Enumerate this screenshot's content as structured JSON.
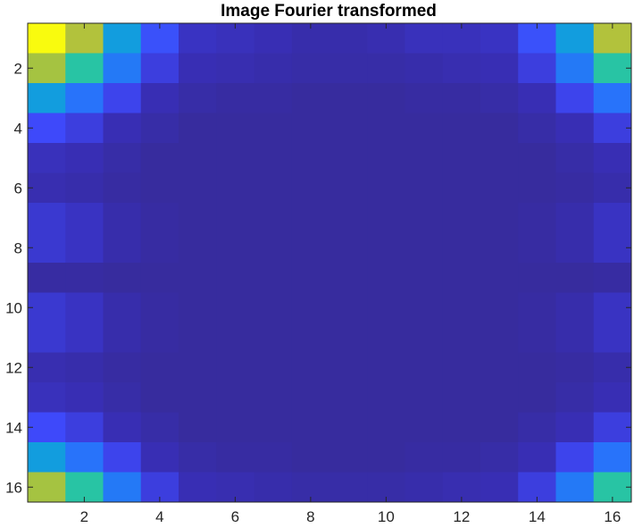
{
  "chart_data": {
    "type": "heatmap",
    "title": "Image Fourier transformed",
    "xlabel": "",
    "ylabel": "",
    "xlim": [
      0.5,
      16.5
    ],
    "ylim": [
      0.5,
      16.5
    ],
    "y_reversed": true,
    "x_ticks": [
      2,
      4,
      6,
      8,
      10,
      12,
      14,
      16
    ],
    "y_ticks": [
      2,
      4,
      6,
      8,
      10,
      12,
      14,
      16
    ],
    "x_tick_labels": [
      "2",
      "4",
      "6",
      "8",
      "10",
      "12",
      "14",
      "16"
    ],
    "y_tick_labels": [
      "2",
      "4",
      "6",
      "8",
      "10",
      "12",
      "14",
      "16"
    ],
    "grid": false,
    "colorbar": false,
    "colormap": "parula",
    "clim": [
      0,
      1
    ],
    "values": [
      [
        1.0,
        0.82,
        0.44,
        0.22,
        0.12,
        0.11,
        0.1,
        0.08,
        0.08,
        0.09,
        0.11,
        0.11,
        0.12,
        0.22,
        0.44,
        0.82
      ],
      [
        0.8,
        0.62,
        0.32,
        0.16,
        0.1,
        0.09,
        0.08,
        0.07,
        0.07,
        0.07,
        0.08,
        0.09,
        0.1,
        0.16,
        0.32,
        0.62
      ],
      [
        0.44,
        0.3,
        0.18,
        0.1,
        0.07,
        0.06,
        0.06,
        0.05,
        0.05,
        0.05,
        0.06,
        0.06,
        0.07,
        0.1,
        0.18,
        0.3
      ],
      [
        0.2,
        0.16,
        0.1,
        0.07,
        0.05,
        0.05,
        0.05,
        0.05,
        0.05,
        0.05,
        0.05,
        0.05,
        0.05,
        0.07,
        0.1,
        0.16
      ],
      [
        0.11,
        0.1,
        0.07,
        0.05,
        0.05,
        0.05,
        0.05,
        0.05,
        0.05,
        0.05,
        0.05,
        0.05,
        0.05,
        0.05,
        0.07,
        0.1
      ],
      [
        0.09,
        0.08,
        0.06,
        0.05,
        0.05,
        0.05,
        0.05,
        0.05,
        0.05,
        0.05,
        0.05,
        0.05,
        0.05,
        0.05,
        0.06,
        0.08
      ],
      [
        0.14,
        0.12,
        0.08,
        0.06,
        0.05,
        0.05,
        0.05,
        0.05,
        0.05,
        0.05,
        0.05,
        0.05,
        0.05,
        0.06,
        0.08,
        0.12
      ],
      [
        0.14,
        0.12,
        0.08,
        0.06,
        0.05,
        0.05,
        0.05,
        0.05,
        0.05,
        0.05,
        0.05,
        0.05,
        0.05,
        0.06,
        0.08,
        0.12
      ],
      [
        0.06,
        0.06,
        0.05,
        0.05,
        0.05,
        0.05,
        0.05,
        0.05,
        0.05,
        0.05,
        0.05,
        0.05,
        0.05,
        0.05,
        0.05,
        0.06
      ],
      [
        0.14,
        0.12,
        0.08,
        0.06,
        0.05,
        0.05,
        0.05,
        0.05,
        0.05,
        0.05,
        0.05,
        0.05,
        0.05,
        0.06,
        0.08,
        0.12
      ],
      [
        0.14,
        0.12,
        0.08,
        0.06,
        0.05,
        0.05,
        0.05,
        0.05,
        0.05,
        0.05,
        0.05,
        0.05,
        0.05,
        0.06,
        0.08,
        0.12
      ],
      [
        0.09,
        0.08,
        0.06,
        0.05,
        0.05,
        0.05,
        0.05,
        0.05,
        0.05,
        0.05,
        0.05,
        0.05,
        0.05,
        0.05,
        0.06,
        0.08
      ],
      [
        0.11,
        0.1,
        0.07,
        0.05,
        0.05,
        0.05,
        0.05,
        0.05,
        0.05,
        0.05,
        0.05,
        0.05,
        0.05,
        0.05,
        0.07,
        0.1
      ],
      [
        0.2,
        0.16,
        0.1,
        0.07,
        0.05,
        0.05,
        0.05,
        0.05,
        0.05,
        0.05,
        0.05,
        0.05,
        0.05,
        0.07,
        0.1,
        0.16
      ],
      [
        0.44,
        0.3,
        0.18,
        0.1,
        0.07,
        0.06,
        0.06,
        0.05,
        0.05,
        0.05,
        0.06,
        0.06,
        0.07,
        0.1,
        0.18,
        0.3
      ],
      [
        0.8,
        0.62,
        0.32,
        0.16,
        0.1,
        0.09,
        0.08,
        0.07,
        0.07,
        0.07,
        0.08,
        0.09,
        0.1,
        0.16,
        0.32,
        0.62
      ]
    ]
  },
  "colors": {
    "axis": "#262626",
    "title": "#000000"
  }
}
